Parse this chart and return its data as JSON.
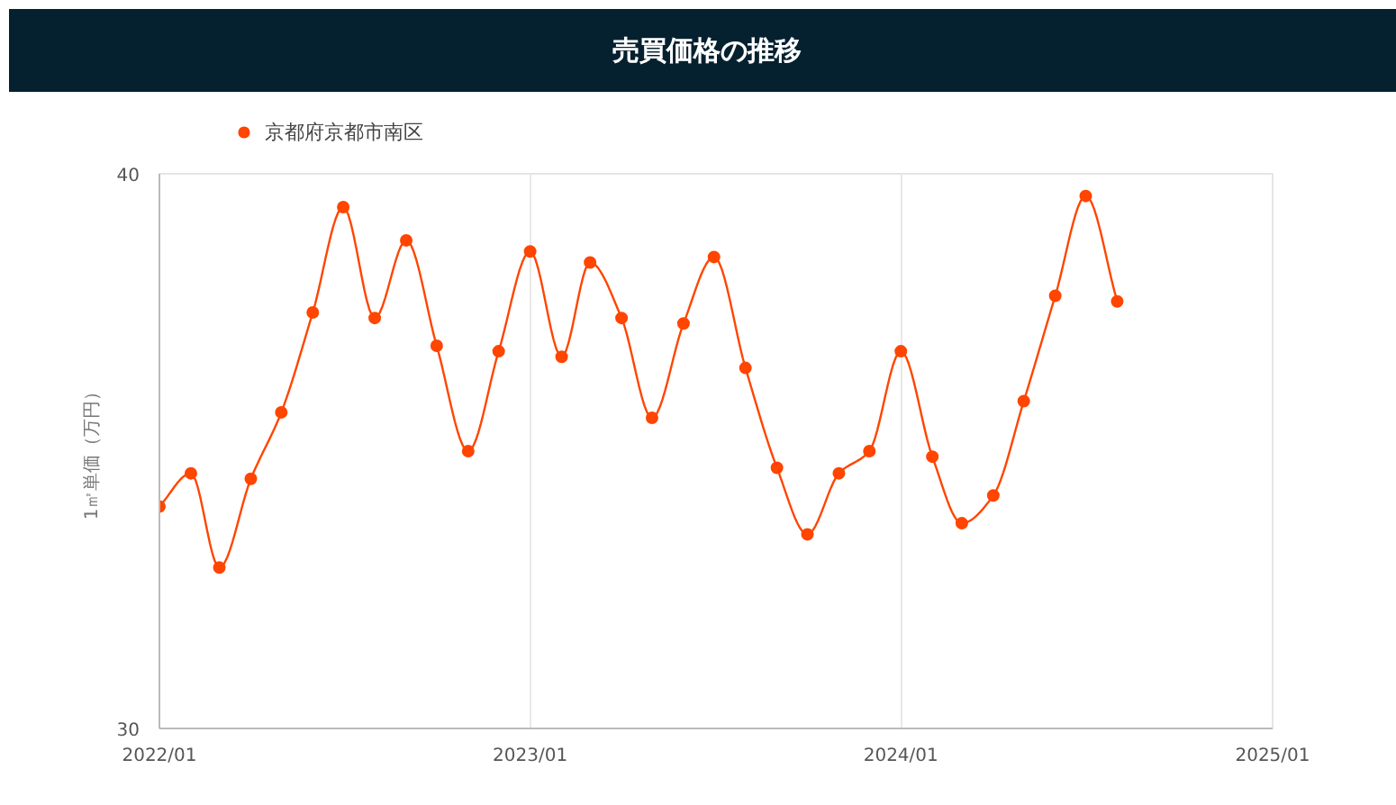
{
  "chart_data": {
    "type": "line",
    "title": "売買価格の推移",
    "ylabel": "1㎡単価（万円）",
    "x": [
      "2022-01",
      "2022-02",
      "2022-03",
      "2022-04",
      "2022-05",
      "2022-06",
      "2022-07",
      "2022-08",
      "2022-09",
      "2022-10",
      "2022-11",
      "2022-12",
      "2023-01",
      "2023-02",
      "2023-03",
      "2023-04",
      "2023-05",
      "2023-06",
      "2023-07",
      "2023-08",
      "2023-09",
      "2023-10",
      "2023-11",
      "2023-12",
      "2024-01",
      "2024-02",
      "2024-03",
      "2024-04",
      "2024-05",
      "2024-06",
      "2024-07",
      "2024-08"
    ],
    "series": [
      {
        "name": "京都府京都市南区",
        "color": "#ff4500",
        "values": [
          34.0,
          34.6,
          32.9,
          34.5,
          35.7,
          37.5,
          39.4,
          37.4,
          38.8,
          36.9,
          35.0,
          36.8,
          38.6,
          36.7,
          38.4,
          37.4,
          35.6,
          37.3,
          38.5,
          36.5,
          34.7,
          33.5,
          34.6,
          35.0,
          36.8,
          34.9,
          33.7,
          34.2,
          35.9,
          37.8,
          39.6,
          37.7
        ]
      }
    ],
    "xlim": [
      "2022-01",
      "2025-01"
    ],
    "xticks": [
      {
        "value": "2022-01",
        "label": "2022/01"
      },
      {
        "value": "2023-01",
        "label": "2023/01"
      },
      {
        "value": "2024-01",
        "label": "2024/01"
      },
      {
        "value": "2025-01",
        "label": "2025/01"
      }
    ],
    "ylim": [
      30,
      40
    ],
    "yticks": [
      30,
      40
    ],
    "grid": true,
    "legend": "top left",
    "marker": "circle",
    "line_style": "solid"
  }
}
